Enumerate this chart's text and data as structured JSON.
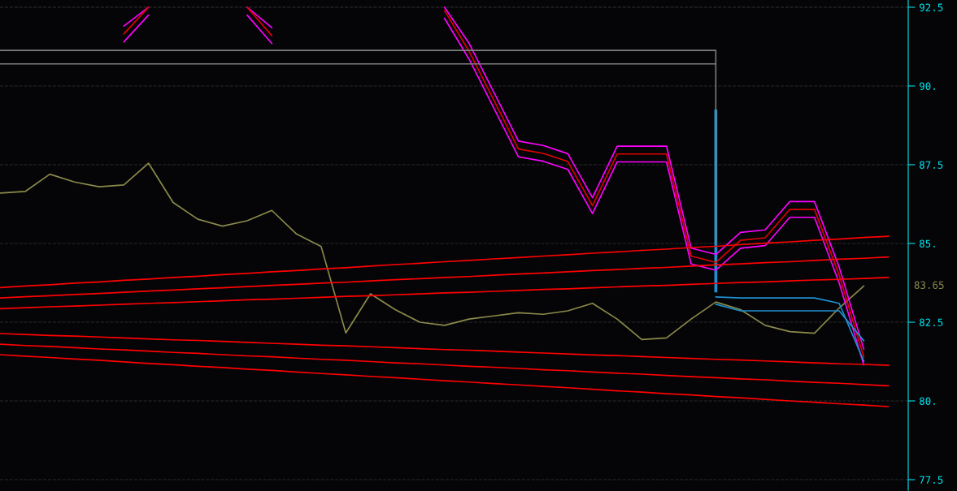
{
  "chart_data": {
    "type": "line",
    "categories": [
      null,
      null,
      null,
      null,
      null,
      null,
      null,
      null,
      null,
      null,
      null,
      null,
      null,
      null,
      null,
      null,
      null,
      null,
      null,
      null,
      null,
      null,
      null,
      null,
      null,
      null,
      null,
      null,
      null,
      null,
      null,
      null,
      null,
      null,
      null,
      null,
      null
    ],
    "ylim": [
      77.14,
      92.73
    ],
    "yticks": [
      77.5,
      {
        "value": 80,
        "label": "80."
      },
      82.5,
      {
        "value": 85,
        "label": "85."
      },
      87.5,
      {
        "value": 90,
        "label": "90."
      },
      92.5
    ],
    "tick_labels": "y",
    "grid": "y",
    "annotations": [
      "83.65"
    ],
    "series": [
      {
        "color": "#8c8a4a",
        "values": [
          86.6,
          86.65,
          87.2,
          86.95,
          86.8,
          86.86,
          87.55,
          86.3,
          85.77,
          85.55,
          85.72,
          86.05,
          85.3,
          84.9,
          82.16,
          83.4,
          82.9,
          82.5,
          82.4,
          82.6,
          82.7,
          82.8,
          82.75,
          82.86,
          83.1,
          82.6,
          81.95,
          82.0,
          82.6,
          83.14,
          82.9,
          82.4,
          82.2,
          82.15,
          82.95,
          83.65,
          null
        ]
      },
      {
        "color": "#ff00ff",
        "values": [
          null,
          null,
          null,
          null,
          null,
          91.9,
          92.5,
          null,
          null,
          null,
          92.5,
          91.85,
          null,
          null,
          null,
          null,
          null,
          null,
          92.5,
          91.35,
          89.8,
          88.25,
          88.11,
          87.85,
          86.45,
          88.09,
          88.09,
          88.09,
          84.85,
          84.65,
          85.35,
          85.43,
          86.33,
          86.33,
          84.25,
          81.64,
          null
        ]
      },
      {
        "color": "#e00000",
        "values": [
          null,
          null,
          null,
          null,
          null,
          91.65,
          92.5,
          null,
          null,
          null,
          92.5,
          91.6,
          null,
          null,
          null,
          null,
          null,
          null,
          92.4,
          91.1,
          89.55,
          88.0,
          87.86,
          87.6,
          86.2,
          87.84,
          87.84,
          87.84,
          84.6,
          84.4,
          85.1,
          85.18,
          86.08,
          86.08,
          84.0,
          81.39,
          null
        ]
      },
      {
        "color": "#ff00ff",
        "values": [
          null,
          null,
          null,
          null,
          null,
          91.4,
          92.25,
          null,
          null,
          null,
          92.25,
          91.35,
          null,
          null,
          null,
          null,
          null,
          null,
          92.15,
          90.85,
          89.3,
          87.75,
          87.61,
          87.35,
          85.95,
          87.59,
          87.59,
          87.59,
          84.35,
          84.15,
          84.85,
          84.93,
          85.83,
          85.83,
          83.75,
          81.14,
          null
        ]
      },
      {
        "color": "#1e90d0",
        "values": [
          null,
          null,
          null,
          null,
          null,
          null,
          null,
          null,
          null,
          null,
          null,
          null,
          null,
          null,
          null,
          null,
          null,
          null,
          null,
          null,
          null,
          null,
          null,
          null,
          null,
          null,
          null,
          null,
          null,
          83.3,
          83.27,
          83.27,
          83.27,
          83.27,
          83.1,
          81.26,
          null
        ]
      },
      {
        "color": "#1e90d0",
        "values": [
          null,
          null,
          null,
          null,
          null,
          null,
          null,
          null,
          null,
          null,
          null,
          null,
          null,
          null,
          null,
          null,
          null,
          null,
          null,
          null,
          null,
          null,
          null,
          null,
          null,
          null,
          null,
          null,
          null,
          83.07,
          82.86,
          82.86,
          82.86,
          82.86,
          82.86,
          81.91,
          null
        ]
      },
      {
        "color": "#1e90d0",
        "type": "bar",
        "values": [
          null,
          null,
          null,
          null,
          null,
          null,
          null,
          null,
          null,
          null,
          null,
          null,
          null,
          null,
          null,
          null,
          null,
          null,
          null,
          null,
          null,
          null,
          null,
          null,
          null,
          null,
          null,
          null,
          null,
          5.8,
          null,
          null,
          null,
          null,
          null,
          null,
          null
        ],
        "base": [
          null,
          null,
          null,
          null,
          null,
          null,
          null,
          null,
          null,
          null,
          null,
          null,
          null,
          null,
          null,
          null,
          null,
          null,
          null,
          null,
          null,
          null,
          null,
          null,
          null,
          null,
          null,
          null,
          null,
          83.45,
          null,
          null,
          null,
          null,
          null,
          null,
          null
        ]
      },
      {
        "color": "#808080",
        "values": [
          91.13,
          91.13,
          91.13,
          91.13,
          91.13,
          91.13,
          91.13,
          91.13,
          91.13,
          91.13,
          91.13,
          91.13,
          91.13,
          91.13,
          91.13,
          91.13,
          91.13,
          91.13,
          91.13,
          91.13,
          91.13,
          91.13,
          91.13,
          91.13,
          91.13,
          91.13,
          91.13,
          91.13,
          91.13,
          91.13,
          null,
          null,
          null,
          null,
          null,
          null,
          null
        ]
      },
      {
        "color": "#808080",
        "values": [
          90.7,
          90.7,
          90.7,
          90.7,
          90.7,
          90.7,
          90.7,
          90.7,
          90.7,
          90.7,
          90.7,
          90.7,
          90.7,
          90.7,
          90.7,
          90.7,
          90.7,
          90.7,
          90.7,
          90.7,
          90.7,
          90.7,
          90.7,
          90.7,
          90.7,
          90.7,
          90.7,
          90.7,
          90.7,
          90.7,
          null,
          null,
          null,
          null,
          null,
          null,
          null
        ]
      },
      {
        "color": "#808080",
        "type": "bar",
        "values": [
          null,
          null,
          null,
          null,
          null,
          null,
          null,
          null,
          null,
          null,
          null,
          null,
          null,
          null,
          null,
          null,
          null,
          null,
          null,
          null,
          null,
          null,
          null,
          null,
          null,
          null,
          null,
          null,
          null,
          6.13,
          null,
          null,
          null,
          null,
          null,
          null,
          null
        ],
        "base": [
          null,
          null,
          null,
          null,
          null,
          null,
          null,
          null,
          null,
          null,
          null,
          null,
          null,
          null,
          null,
          null,
          null,
          null,
          null,
          null,
          null,
          null,
          null,
          null,
          null,
          null,
          null,
          null,
          null,
          85.0,
          null,
          null,
          null,
          null,
          null,
          null,
          null
        ]
      },
      {
        "color": "#ff0000",
        "values": [
          83.6,
          83.65,
          83.69,
          83.74,
          83.78,
          83.83,
          83.87,
          83.92,
          83.96,
          84.01,
          84.05,
          84.1,
          84.14,
          84.19,
          84.23,
          84.28,
          84.33,
          84.37,
          84.42,
          84.46,
          84.51,
          84.55,
          84.6,
          84.64,
          84.69,
          84.73,
          84.78,
          84.82,
          84.87,
          84.91,
          84.96,
          85.01,
          85.05,
          85.1,
          85.14,
          85.19,
          85.23
        ]
      },
      {
        "color": "#ff0000",
        "values": [
          83.27,
          83.31,
          83.34,
          83.38,
          83.41,
          83.45,
          83.49,
          83.52,
          83.56,
          83.59,
          83.63,
          83.67,
          83.7,
          83.74,
          83.77,
          83.81,
          83.85,
          83.88,
          83.92,
          83.95,
          83.99,
          84.03,
          84.06,
          84.1,
          84.14,
          84.17,
          84.21,
          84.24,
          84.28,
          84.32,
          84.35,
          84.39,
          84.42,
          84.46,
          84.5,
          84.53,
          84.57
        ]
      },
      {
        "color": "#ff0000",
        "values": [
          82.93,
          82.96,
          82.99,
          83.01,
          83.04,
          83.07,
          83.1,
          83.12,
          83.15,
          83.18,
          83.21,
          83.23,
          83.26,
          83.29,
          83.32,
          83.34,
          83.37,
          83.4,
          83.43,
          83.45,
          83.48,
          83.51,
          83.54,
          83.56,
          83.59,
          83.62,
          83.65,
          83.67,
          83.7,
          83.73,
          83.76,
          83.78,
          83.81,
          83.84,
          83.86,
          83.89,
          83.92
        ]
      },
      {
        "color": "#ff0000",
        "values": [
          82.14,
          82.11,
          82.08,
          82.06,
          82.03,
          82.0,
          81.97,
          81.94,
          81.92,
          81.89,
          81.86,
          81.83,
          81.8,
          81.77,
          81.75,
          81.72,
          81.69,
          81.66,
          81.63,
          81.61,
          81.58,
          81.55,
          81.52,
          81.49,
          81.46,
          81.44,
          81.41,
          81.38,
          81.35,
          81.32,
          81.3,
          81.27,
          81.24,
          81.21,
          81.18,
          81.16,
          81.13
        ]
      },
      {
        "color": "#ff0000",
        "values": [
          81.8,
          81.76,
          81.73,
          81.69,
          81.65,
          81.62,
          81.58,
          81.54,
          81.51,
          81.47,
          81.43,
          81.4,
          81.36,
          81.32,
          81.29,
          81.25,
          81.21,
          81.18,
          81.14,
          81.1,
          81.07,
          81.03,
          80.99,
          80.96,
          80.92,
          80.88,
          80.85,
          80.81,
          80.77,
          80.74,
          80.7,
          80.67,
          80.63,
          80.59,
          80.56,
          80.52,
          80.48
        ]
      },
      {
        "color": "#ff0000",
        "values": [
          81.47,
          81.42,
          81.38,
          81.33,
          81.29,
          81.24,
          81.19,
          81.15,
          81.1,
          81.06,
          81.01,
          80.97,
          80.92,
          80.87,
          80.83,
          80.78,
          80.74,
          80.69,
          80.64,
          80.6,
          80.55,
          80.51,
          80.46,
          80.42,
          80.37,
          80.32,
          80.28,
          80.23,
          80.19,
          80.14,
          80.1,
          80.05,
          80.0,
          79.96,
          79.91,
          79.87,
          79.82
        ]
      }
    ]
  }
}
